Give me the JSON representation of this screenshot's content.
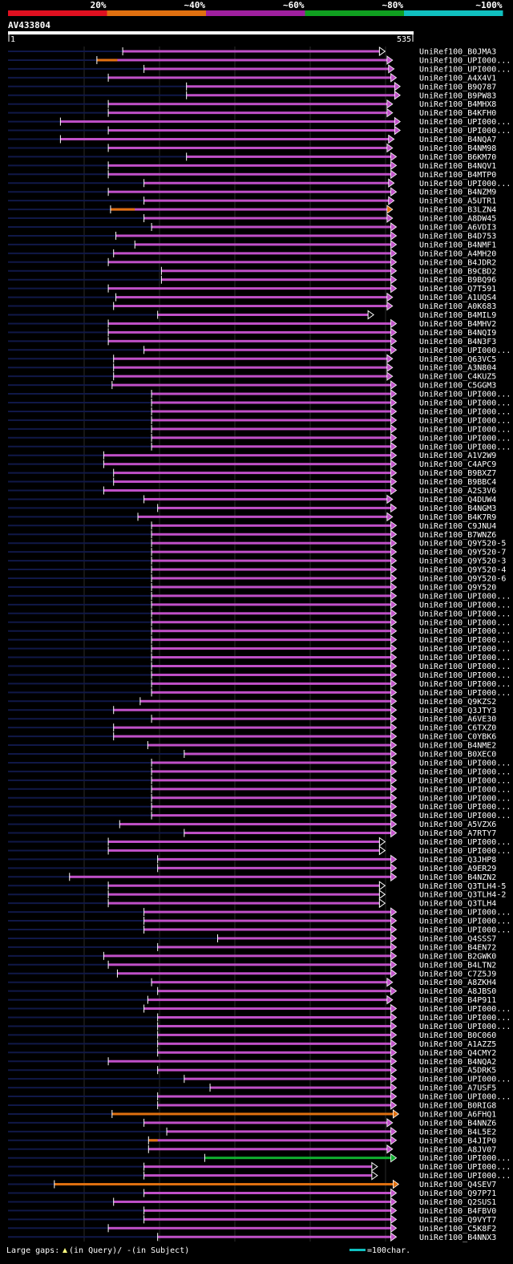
{
  "chart_data": {
    "type": "alignment-overview",
    "query": {
      "name": "AV433804",
      "start": 1,
      "end": 535
    },
    "identity_legend": [
      {
        "label": "20%",
        "color": "#e01020"
      },
      {
        "label": "~40%",
        "color": "#e07010"
      },
      {
        "label": "~60%",
        "color": "#a020a0"
      },
      {
        "label": "~80%",
        "color": "#10a020"
      },
      {
        "label": "~100%",
        "color": "#10c0c0"
      }
    ],
    "footer": {
      "gaps_text": "Large gaps:",
      "query_text": "(in Query)/",
      "dash": "-",
      "subject_text": " (in Subject)",
      "scale_text": "=100char."
    },
    "hits": [
      {
        "name": "UniRef100_B0JMA3",
        "s": 152,
        "e": 490,
        "c": "m",
        "t": "o"
      },
      {
        "name": "UniRef100_UPI000...",
        "s": 118,
        "e": 500,
        "c": "m",
        "t": "f",
        "lead": [
          118,
          145
        ]
      },
      {
        "name": "UniRef100_UPI000...",
        "s": 180,
        "e": 502,
        "c": "m",
        "t": "f"
      },
      {
        "name": "UniRef100_A4X4V1",
        "s": 133,
        "e": 505,
        "c": "m",
        "t": "f"
      },
      {
        "name": "UniRef100_B9Q787",
        "s": 236,
        "e": 510,
        "c": "m",
        "t": "f"
      },
      {
        "name": "UniRef100_B9PW83",
        "s": 236,
        "e": 510,
        "c": "m",
        "t": "f"
      },
      {
        "name": "UniRef100_B4MHX8",
        "s": 133,
        "e": 500,
        "c": "m",
        "t": "f"
      },
      {
        "name": "UniRef100_B4KFH0",
        "s": 133,
        "e": 500,
        "c": "m",
        "t": "f"
      },
      {
        "name": "UniRef100_UPI000...",
        "s": 70,
        "e": 510,
        "c": "m",
        "t": "f"
      },
      {
        "name": "UniRef100_UPI000...",
        "s": 133,
        "e": 510,
        "c": "m",
        "t": "f"
      },
      {
        "name": "UniRef100_B4NQA7",
        "s": 70,
        "e": 502,
        "c": "m",
        "t": "f"
      },
      {
        "name": "UniRef100_B4NM98",
        "s": 133,
        "e": 500,
        "c": "m",
        "t": "f"
      },
      {
        "name": "UniRef100_B6KM70",
        "s": 236,
        "e": 505,
        "c": "m",
        "t": "f"
      },
      {
        "name": "UniRef100_B4NQV1",
        "s": 133,
        "e": 505,
        "c": "m",
        "t": "f"
      },
      {
        "name": "UniRef100_B4MTP0",
        "s": 133,
        "e": 505,
        "c": "m",
        "t": "f"
      },
      {
        "name": "UniRef100_UPI000...",
        "s": 180,
        "e": 502,
        "c": "m",
        "t": "f"
      },
      {
        "name": "UniRef100_B4NZM9",
        "s": 133,
        "e": 505,
        "c": "m",
        "t": "f"
      },
      {
        "name": "UniRef100_A5UTR1",
        "s": 180,
        "e": 502,
        "c": "m",
        "t": "f"
      },
      {
        "name": "UniRef100_B3LZN4",
        "s": 136,
        "e": 500,
        "c": "m",
        "t": "f",
        "lead": [
          136,
          168
        ],
        "cap": "orange"
      },
      {
        "name": "UniRef100_A8DW45",
        "s": 180,
        "e": 500,
        "c": "m",
        "t": "f"
      },
      {
        "name": "UniRef100_A6VDI3",
        "s": 190,
        "e": 505,
        "c": "m",
        "t": "f"
      },
      {
        "name": "UniRef100_B4D753",
        "s": 143,
        "e": 505,
        "c": "m",
        "t": "f"
      },
      {
        "name": "UniRef100_B4NMF1",
        "s": 168,
        "e": 505,
        "c": "m",
        "t": "f"
      },
      {
        "name": "UniRef100_A4MH20",
        "s": 140,
        "e": 505,
        "c": "m",
        "t": "f"
      },
      {
        "name": "UniRef100_B4JDR2",
        "s": 133,
        "e": 505,
        "c": "m",
        "t": "f"
      },
      {
        "name": "UniRef100_B9CBD2",
        "s": 203,
        "e": 505,
        "c": "m",
        "t": "f"
      },
      {
        "name": "UniRef100_B9BQ96",
        "s": 203,
        "e": 505,
        "c": "m",
        "t": "f"
      },
      {
        "name": "UniRef100_Q7T591",
        "s": 133,
        "e": 505,
        "c": "m",
        "t": "f"
      },
      {
        "name": "UniRef100_A1UQS4",
        "s": 143,
        "e": 500,
        "c": "m",
        "t": "f"
      },
      {
        "name": "UniRef100_A0K683",
        "s": 140,
        "e": 500,
        "c": "m",
        "t": "f"
      },
      {
        "name": "UniRef100_B4MIL9",
        "s": 198,
        "e": 475,
        "c": "m",
        "t": "o"
      },
      {
        "name": "UniRef100_B4MHV2",
        "s": 133,
        "e": 505,
        "c": "m",
        "t": "f"
      },
      {
        "name": "UniRef100_B4NQI9",
        "s": 133,
        "e": 505,
        "c": "m",
        "t": "f"
      },
      {
        "name": "UniRef100_B4N3F3",
        "s": 133,
        "e": 505,
        "c": "m",
        "t": "f"
      },
      {
        "name": "UniRef100_UPI000...",
        "s": 180,
        "e": 505,
        "c": "m",
        "t": "f"
      },
      {
        "name": "UniRef100_Q63VC5",
        "s": 140,
        "e": 500,
        "c": "m",
        "t": "f"
      },
      {
        "name": "UniRef100_A3N804",
        "s": 140,
        "e": 500,
        "c": "m",
        "t": "f"
      },
      {
        "name": "UniRef100_C4KUZ5",
        "s": 140,
        "e": 500,
        "c": "m",
        "t": "f"
      },
      {
        "name": "UniRef100_C5GGM3",
        "s": 138,
        "e": 505,
        "c": "m",
        "t": "f"
      },
      {
        "name": "UniRef100_UPI000...",
        "s": 190,
        "e": 505,
        "c": "m",
        "t": "f"
      },
      {
        "name": "UniRef100_UPI000...",
        "s": 190,
        "e": 505,
        "c": "m",
        "t": "f"
      },
      {
        "name": "UniRef100_UPI000...",
        "s": 190,
        "e": 505,
        "c": "m",
        "t": "f"
      },
      {
        "name": "UniRef100_UPI000...",
        "s": 190,
        "e": 505,
        "c": "m",
        "t": "f"
      },
      {
        "name": "UniRef100_UPI000...",
        "s": 190,
        "e": 505,
        "c": "m",
        "t": "f"
      },
      {
        "name": "UniRef100_UPI000...",
        "s": 190,
        "e": 505,
        "c": "m",
        "t": "f"
      },
      {
        "name": "UniRef100_UPI000...",
        "s": 190,
        "e": 505,
        "c": "m",
        "t": "f"
      },
      {
        "name": "UniRef100_A1V2W9",
        "s": 127,
        "e": 505,
        "c": "m",
        "t": "f"
      },
      {
        "name": "UniRef100_C4APC9",
        "s": 127,
        "e": 505,
        "c": "m",
        "t": "f"
      },
      {
        "name": "UniRef100_B9BXZ7",
        "s": 140,
        "e": 505,
        "c": "m",
        "t": "f"
      },
      {
        "name": "UniRef100_B9BBC4",
        "s": 140,
        "e": 505,
        "c": "m",
        "t": "f"
      },
      {
        "name": "UniRef100_A2S3V6",
        "s": 127,
        "e": 505,
        "c": "m",
        "t": "f"
      },
      {
        "name": "UniRef100_Q4DUW4",
        "s": 180,
        "e": 500,
        "c": "m",
        "t": "f"
      },
      {
        "name": "UniRef100_B4NGM3",
        "s": 198,
        "e": 505,
        "c": "m",
        "t": "f"
      },
      {
        "name": "UniRef100_B4K7R9",
        "s": 172,
        "e": 500,
        "c": "m",
        "t": "f"
      },
      {
        "name": "UniRef100_C9JNU4",
        "s": 190,
        "e": 505,
        "c": "m",
        "t": "f"
      },
      {
        "name": "UniRef100_B7WNZ6",
        "s": 190,
        "e": 505,
        "c": "m",
        "t": "f"
      },
      {
        "name": "UniRef100_Q9Y520-5",
        "s": 190,
        "e": 505,
        "c": "m",
        "t": "f"
      },
      {
        "name": "UniRef100_Q9Y520-7",
        "s": 190,
        "e": 505,
        "c": "m",
        "t": "f"
      },
      {
        "name": "UniRef100_Q9Y520-3",
        "s": 190,
        "e": 505,
        "c": "m",
        "t": "f"
      },
      {
        "name": "UniRef100_Q9Y520-4",
        "s": 190,
        "e": 505,
        "c": "m",
        "t": "f"
      },
      {
        "name": "UniRef100_Q9Y520-6",
        "s": 190,
        "e": 505,
        "c": "m",
        "t": "f"
      },
      {
        "name": "UniRef100_Q9Y520",
        "s": 190,
        "e": 505,
        "c": "m",
        "t": "f"
      },
      {
        "name": "UniRef100_UPI000...",
        "s": 190,
        "e": 505,
        "c": "m",
        "t": "f"
      },
      {
        "name": "UniRef100_UPI000...",
        "s": 190,
        "e": 505,
        "c": "m",
        "t": "f"
      },
      {
        "name": "UniRef100_UPI000...",
        "s": 190,
        "e": 505,
        "c": "m",
        "t": "f"
      },
      {
        "name": "UniRef100_UPI000...",
        "s": 190,
        "e": 505,
        "c": "m",
        "t": "f"
      },
      {
        "name": "UniRef100_UPI000...",
        "s": 190,
        "e": 505,
        "c": "m",
        "t": "f"
      },
      {
        "name": "UniRef100_UPI000...",
        "s": 190,
        "e": 505,
        "c": "m",
        "t": "f"
      },
      {
        "name": "UniRef100_UPI000...",
        "s": 190,
        "e": 505,
        "c": "m",
        "t": "f"
      },
      {
        "name": "UniRef100_UPI000...",
        "s": 190,
        "e": 505,
        "c": "m",
        "t": "f"
      },
      {
        "name": "UniRef100_UPI000...",
        "s": 190,
        "e": 505,
        "c": "m",
        "t": "f"
      },
      {
        "name": "UniRef100_UPI000...",
        "s": 190,
        "e": 505,
        "c": "m",
        "t": "f"
      },
      {
        "name": "UniRef100_UPI000...",
        "s": 190,
        "e": 505,
        "c": "m",
        "t": "f"
      },
      {
        "name": "UniRef100_UPI000...",
        "s": 190,
        "e": 505,
        "c": "m",
        "t": "f"
      },
      {
        "name": "UniRef100_Q9KZS2",
        "s": 175,
        "e": 505,
        "c": "m",
        "t": "f"
      },
      {
        "name": "UniRef100_Q3JTY3",
        "s": 140,
        "e": 505,
        "c": "m",
        "t": "f"
      },
      {
        "name": "UniRef100_A6VE30",
        "s": 190,
        "e": 505,
        "c": "m",
        "t": "f"
      },
      {
        "name": "UniRef100_C6TXZ0",
        "s": 140,
        "e": 505,
        "c": "m",
        "t": "f"
      },
      {
        "name": "UniRef100_C0YBK6",
        "s": 140,
        "e": 505,
        "c": "m",
        "t": "f"
      },
      {
        "name": "UniRef100_B4NME2",
        "s": 185,
        "e": 505,
        "c": "m",
        "t": "f"
      },
      {
        "name": "UniRef100_B0XEC0",
        "s": 233,
        "e": 505,
        "c": "m",
        "t": "f"
      },
      {
        "name": "UniRef100_UPI000...",
        "s": 190,
        "e": 505,
        "c": "m",
        "t": "f"
      },
      {
        "name": "UniRef100_UPI000...",
        "s": 190,
        "e": 505,
        "c": "m",
        "t": "f"
      },
      {
        "name": "UniRef100_UPI000...",
        "s": 190,
        "e": 505,
        "c": "m",
        "t": "f"
      },
      {
        "name": "UniRef100_UPI000...",
        "s": 190,
        "e": 505,
        "c": "m",
        "t": "f"
      },
      {
        "name": "UniRef100_UPI000...",
        "s": 190,
        "e": 505,
        "c": "m",
        "t": "f"
      },
      {
        "name": "UniRef100_UPI000...",
        "s": 190,
        "e": 505,
        "c": "m",
        "t": "f"
      },
      {
        "name": "UniRef100_UPI000...",
        "s": 190,
        "e": 505,
        "c": "m",
        "t": "f"
      },
      {
        "name": "UniRef100_A5VZX6",
        "s": 148,
        "e": 505,
        "c": "m",
        "t": "f"
      },
      {
        "name": "UniRef100_A7RTY7",
        "s": 233,
        "e": 505,
        "c": "m",
        "t": "f"
      },
      {
        "name": "UniRef100_UPI000...",
        "s": 133,
        "e": 490,
        "c": "m",
        "t": "o"
      },
      {
        "name": "UniRef100_UPI000...",
        "s": 133,
        "e": 490,
        "c": "m",
        "t": "o"
      },
      {
        "name": "UniRef100_Q3JHP8",
        "s": 198,
        "e": 505,
        "c": "m",
        "t": "f"
      },
      {
        "name": "UniRef100_A9ER29",
        "s": 198,
        "e": 505,
        "c": "m",
        "t": "f"
      },
      {
        "name": "UniRef100_B4NZN2",
        "s": 82,
        "e": 505,
        "c": "m",
        "t": "f"
      },
      {
        "name": "UniRef100_Q3TLH4-5",
        "s": 133,
        "e": 490,
        "c": "m",
        "t": "o"
      },
      {
        "name": "UniRef100_Q3TLH4-2",
        "s": 133,
        "e": 490,
        "c": "m",
        "t": "o"
      },
      {
        "name": "UniRef100_Q3TLH4",
        "s": 133,
        "e": 490,
        "c": "m",
        "t": "o"
      },
      {
        "name": "UniRef100_UPI000...",
        "s": 180,
        "e": 505,
        "c": "m",
        "t": "f"
      },
      {
        "name": "UniRef100_UPI000...",
        "s": 180,
        "e": 505,
        "c": "m",
        "t": "f"
      },
      {
        "name": "UniRef100_UPI000...",
        "s": 180,
        "e": 505,
        "c": "m",
        "t": "f"
      },
      {
        "name": "UniRef100_Q4SSS7",
        "s": 277,
        "e": 505,
        "c": "m",
        "t": "f"
      },
      {
        "name": "UniRef100_B4EN72",
        "s": 198,
        "e": 505,
        "c": "m",
        "t": "f"
      },
      {
        "name": "UniRef100_B2GWK0",
        "s": 127,
        "e": 505,
        "c": "m",
        "t": "f"
      },
      {
        "name": "UniRef100_B4LTN2",
        "s": 133,
        "e": 505,
        "c": "m",
        "t": "f"
      },
      {
        "name": "UniRef100_C7Z5J9",
        "s": 145,
        "e": 505,
        "c": "m",
        "t": "f"
      },
      {
        "name": "UniRef100_A8ZKH4",
        "s": 190,
        "e": 500,
        "c": "m",
        "t": "f"
      },
      {
        "name": "UniRef100_A8JBS0",
        "s": 198,
        "e": 505,
        "c": "m",
        "t": "f"
      },
      {
        "name": "UniRef100_B4P911",
        "s": 185,
        "e": 500,
        "c": "m",
        "t": "f"
      },
      {
        "name": "UniRef100_UPI000...",
        "s": 180,
        "e": 505,
        "c": "m",
        "t": "f"
      },
      {
        "name": "UniRef100_UPI000...",
        "s": 198,
        "e": 505,
        "c": "m",
        "t": "f"
      },
      {
        "name": "UniRef100_UPI000...",
        "s": 198,
        "e": 505,
        "c": "m",
        "t": "f"
      },
      {
        "name": "UniRef100_B0C060",
        "s": 198,
        "e": 505,
        "c": "m",
        "t": "f"
      },
      {
        "name": "UniRef100_A1AZZ5",
        "s": 198,
        "e": 505,
        "c": "m",
        "t": "f"
      },
      {
        "name": "UniRef100_Q4CMY2",
        "s": 198,
        "e": 505,
        "c": "m",
        "t": "f"
      },
      {
        "name": "UniRef100_B4NQA2",
        "s": 133,
        "e": 505,
        "c": "m",
        "t": "f"
      },
      {
        "name": "UniRef100_A5DRK5",
        "s": 198,
        "e": 505,
        "c": "m",
        "t": "f"
      },
      {
        "name": "UniRef100_UPI000...",
        "s": 233,
        "e": 505,
        "c": "m",
        "t": "f"
      },
      {
        "name": "UniRef100_A7USF5",
        "s": 267,
        "e": 505,
        "c": "m",
        "t": "f"
      },
      {
        "name": "UniRef100_UPI000...",
        "s": 198,
        "e": 505,
        "c": "m",
        "t": "f"
      },
      {
        "name": "UniRef100_B0RIG8",
        "s": 198,
        "e": 505,
        "c": "m",
        "t": "f"
      },
      {
        "name": "UniRef100_A6FHQ1",
        "s": 138,
        "e": 508,
        "c": "o",
        "t": "f"
      },
      {
        "name": "UniRef100_B4NNZ6",
        "s": 180,
        "e": 500,
        "c": "m",
        "t": "f"
      },
      {
        "name": "UniRef100_B4L5E2",
        "s": 210,
        "e": 505,
        "c": "m",
        "t": "f"
      },
      {
        "name": "UniRef100_B4JIP0",
        "s": 186,
        "e": 505,
        "c": "m",
        "t": "f",
        "lead": [
          186,
          198
        ]
      },
      {
        "name": "UniRef100_A8JV07",
        "s": 186,
        "e": 500,
        "c": "m",
        "t": "f"
      },
      {
        "name": "UniRef100_UPI000...",
        "s": 260,
        "e": 505,
        "c": "g",
        "t": "f"
      },
      {
        "name": "UniRef100_UPI000...",
        "s": 180,
        "e": 480,
        "c": "m",
        "t": "o"
      },
      {
        "name": "UniRef100_UPI000...",
        "s": 180,
        "e": 480,
        "c": "m",
        "t": "o"
      },
      {
        "name": "UniRef100_Q4SEV7",
        "s": 62,
        "e": 508,
        "c": "o",
        "t": "f"
      },
      {
        "name": "UniRef100_Q97P71",
        "s": 180,
        "e": 505,
        "c": "m",
        "t": "f"
      },
      {
        "name": "UniRef100_Q2SUS1",
        "s": 140,
        "e": 505,
        "c": "m",
        "t": "f"
      },
      {
        "name": "UniRef100_B4FBV0",
        "s": 180,
        "e": 505,
        "c": "m",
        "t": "f"
      },
      {
        "name": "UniRef100_Q9VYT7",
        "s": 180,
        "e": 505,
        "c": "m",
        "t": "f"
      },
      {
        "name": "UniRef100_C5K8F2",
        "s": 133,
        "e": 505,
        "c": "m",
        "t": "f"
      },
      {
        "name": "UniRef100_B4NNX3",
        "s": 198,
        "e": 505,
        "c": "m",
        "t": "f"
      }
    ]
  }
}
